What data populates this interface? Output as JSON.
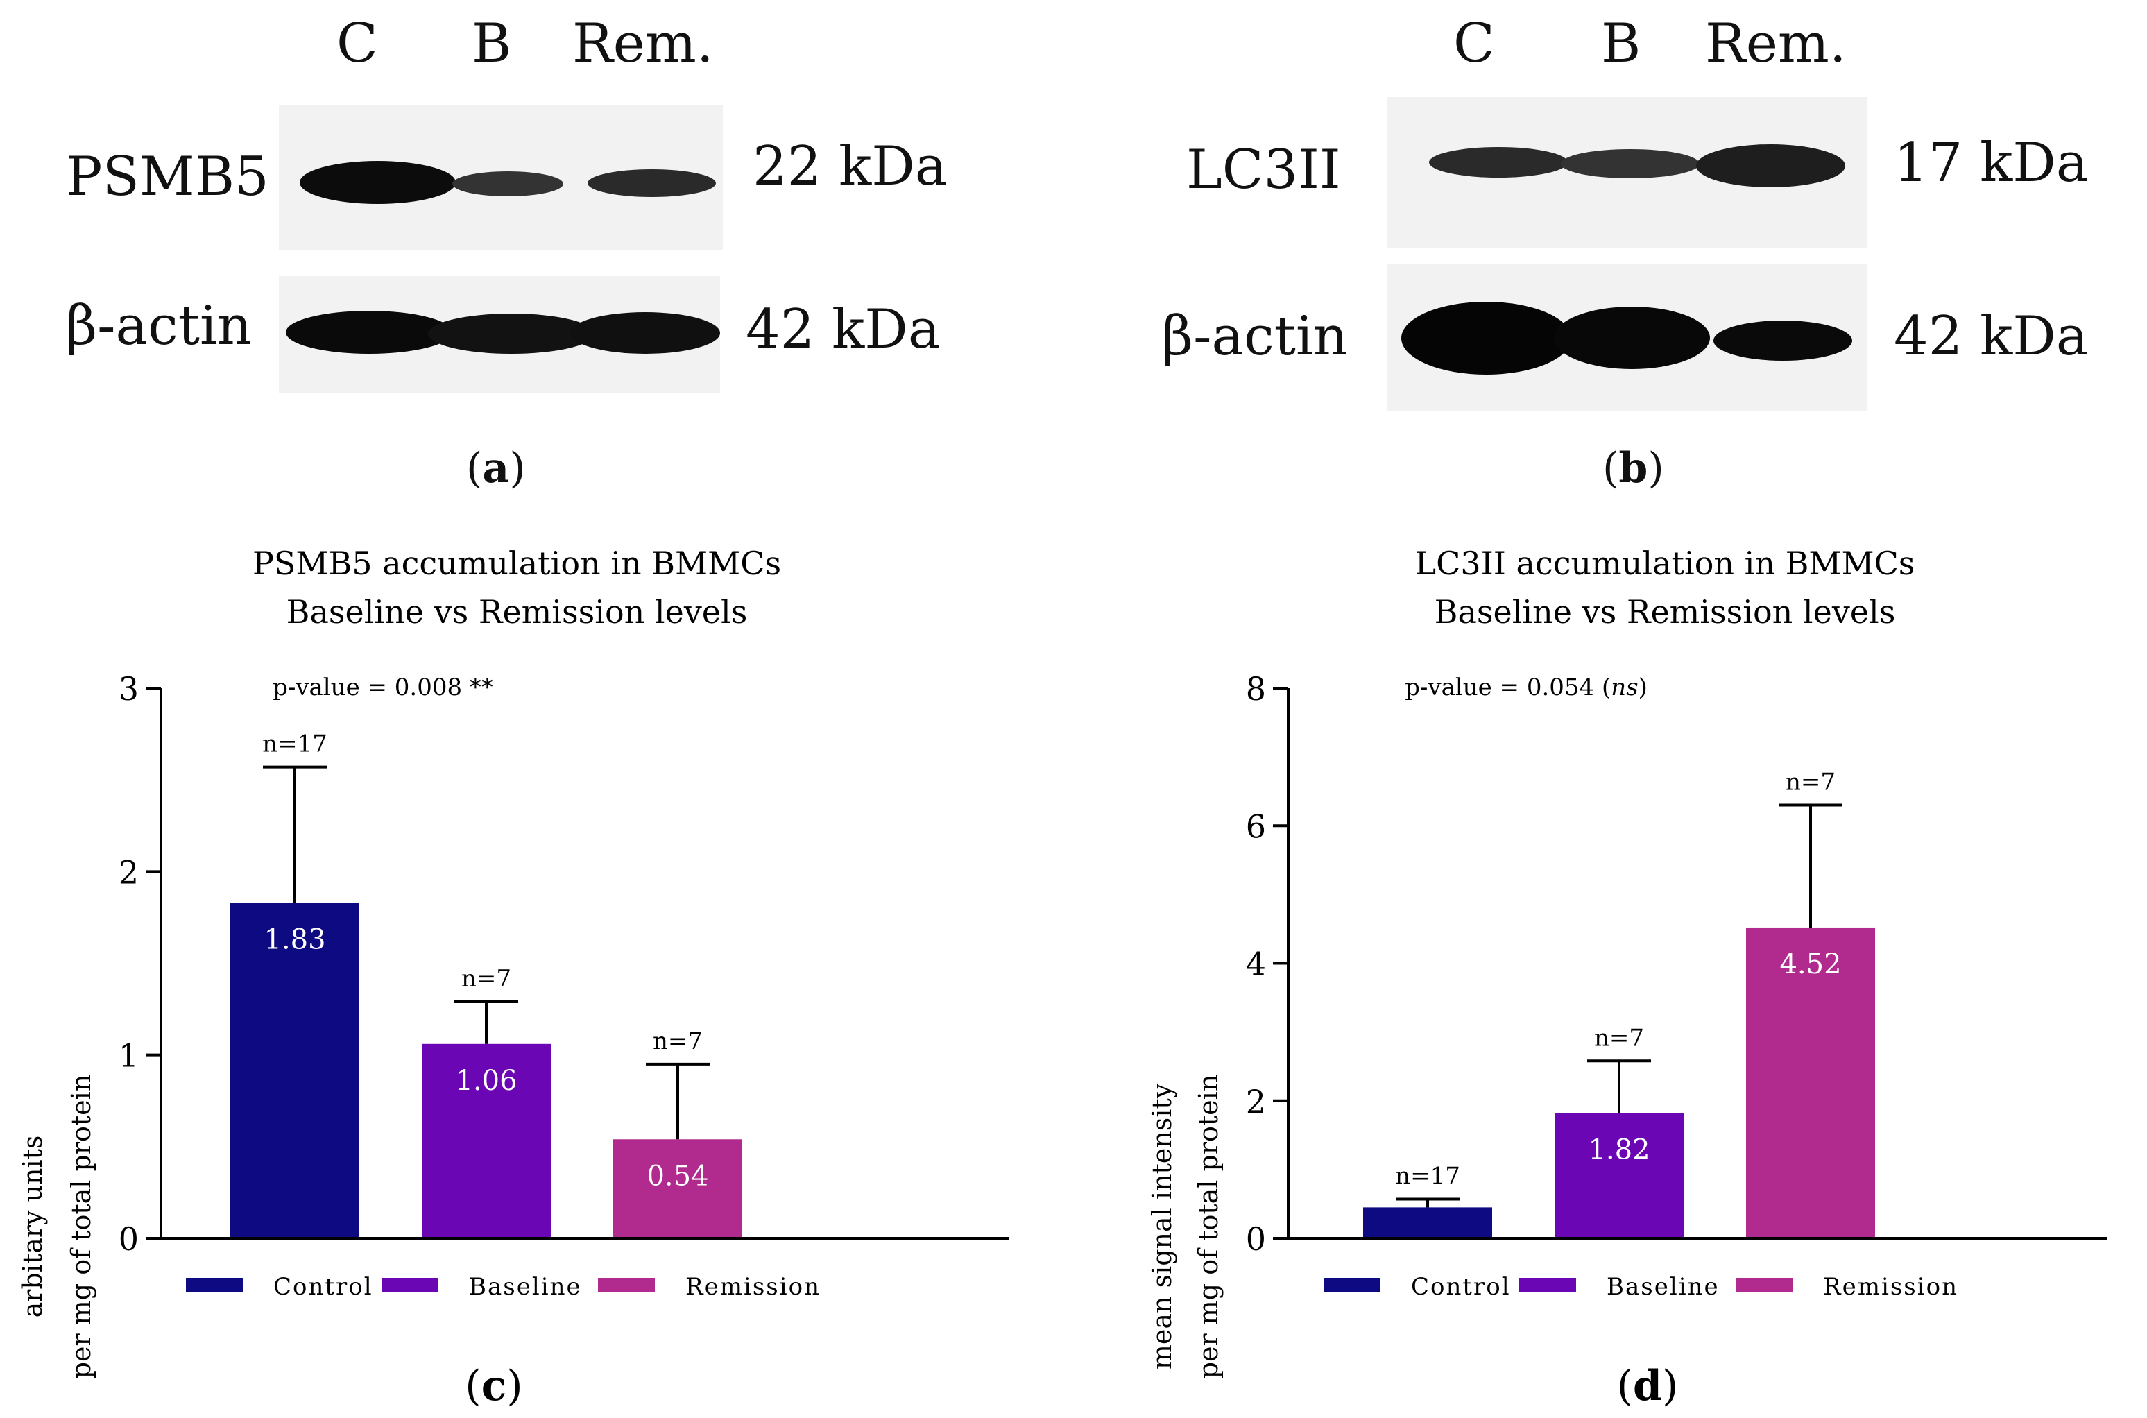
{
  "panel_a": {
    "lanes": [
      "C",
      "B",
      "Rem."
    ],
    "target_label": "PSMB5",
    "target_kda": "22 kDa",
    "control_label": "β-actin",
    "control_kda": "42 kDa",
    "tag_open": "(",
    "tag_letter": "a",
    "tag_close": ")"
  },
  "panel_b": {
    "lanes": [
      "C",
      "B",
      "Rem."
    ],
    "target_label": "LC3II",
    "target_kda": "17 kDa",
    "control_label": "β-actin",
    "control_kda": "42 kDa",
    "tag_open": "(",
    "tag_letter": "b",
    "tag_close": ")"
  },
  "panel_c": {
    "tag_open": "(",
    "tag_letter": "c",
    "tag_close": ")"
  },
  "panel_d": {
    "tag_open": "(",
    "tag_letter": "d",
    "tag_close": ")"
  },
  "colors": {
    "control": "#0d0a82",
    "baseline": "#6a06b3",
    "remission": "#b02b8d"
  },
  "chart_data": [
    {
      "type": "bar",
      "title": [
        "PSMB5 accumulation in BMMCs",
        "Baseline vs Remission levels"
      ],
      "annotation": "p-value = 0.008 **",
      "categories": [
        "Control",
        "Baseline",
        "Remission"
      ],
      "values": [
        1.83,
        1.06,
        0.54
      ],
      "value_labels": [
        "1.83",
        "1.06",
        "0.54"
      ],
      "error_upper": [
        2.57,
        1.29,
        0.95
      ],
      "n_labels": [
        "n=17",
        "n=7",
        "n=7"
      ],
      "ylabel": [
        "arbitary units",
        "per mg of total protein"
      ],
      "ylim": [
        0,
        3
      ],
      "yticks": [
        0,
        1,
        2,
        3
      ],
      "legend": [
        "Control",
        "Baseline",
        "Remission"
      ]
    },
    {
      "type": "bar",
      "title": [
        "LC3II accumulation in BMMCs",
        "Baseline vs Remission levels"
      ],
      "annotation_prefix": "p-value = 0.054 (",
      "annotation_italic": "ns",
      "annotation_suffix": ")",
      "categories": [
        "Control",
        "Baseline",
        "Remission"
      ],
      "values": [
        0.45,
        1.82,
        4.52
      ],
      "value_labels": [
        "",
        "1.82",
        "4.52"
      ],
      "error_upper": [
        0.57,
        2.58,
        6.3
      ],
      "n_labels": [
        "n=17",
        "n=7",
        "n=7"
      ],
      "ylabel": [
        "mean signal intensity",
        "per mg of total protein"
      ],
      "ylim": [
        0,
        8
      ],
      "yticks": [
        0,
        2,
        4,
        6,
        8
      ],
      "legend": [
        "Control",
        "Baseline",
        "Remission"
      ]
    }
  ]
}
